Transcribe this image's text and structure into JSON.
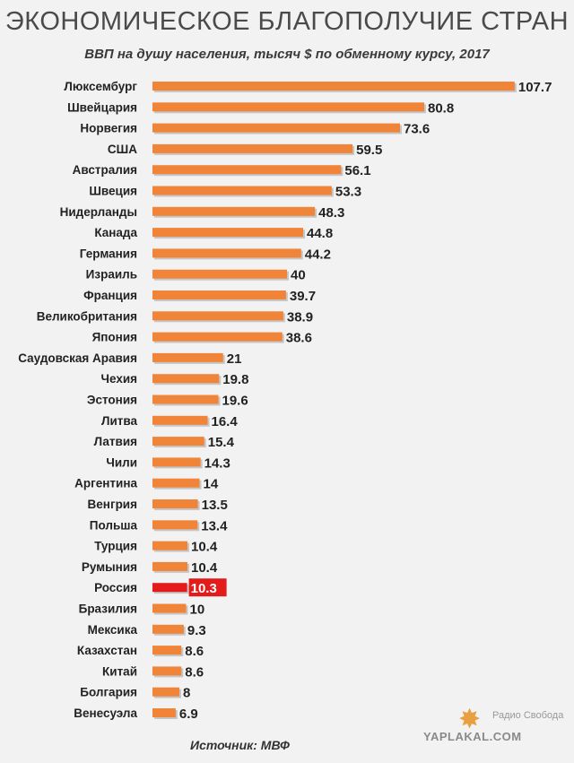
{
  "header": {
    "title": "ЭКОНОМИЧЕСКОЕ БЛАГОПОЛУЧИЕ СТРАН",
    "subtitle": "ВВП на душу населения, тысяч $ по обменному курсу, 2017"
  },
  "footer": {
    "source": "Источник: МВФ",
    "logo_text": "Радио Свобода",
    "watermark": "YAPLAKAL.COM"
  },
  "colors": {
    "bar": "#f0853a",
    "bar_highlight": "#e41b1b",
    "label_highlight_bg": "#e41b1b",
    "text": "#222222"
  },
  "chart_data": {
    "type": "bar",
    "orientation": "horizontal",
    "title": "ЭКОНОМИЧЕСКОЕ БЛАГОПОЛУЧИЕ СТРАН",
    "subtitle": "ВВП на душу населения, тысяч $ по обменному курсу, 2017",
    "xlabel": "",
    "ylabel": "",
    "highlight": "Россия",
    "categories": [
      "Люксембург",
      "Швейцария",
      "Норвегия",
      "США",
      "Австралия",
      "Швеция",
      "Нидерланды",
      "Канада",
      "Германия",
      "Израиль",
      "Франция",
      "Великобритания",
      "Япония",
      "Саудовская Аравия",
      "Чехия",
      "Эстония",
      "Литва",
      "Латвия",
      "Чили",
      "Аргентина",
      "Венгрия",
      "Польша",
      "Турция",
      "Румыния",
      "Россия",
      "Бразилия",
      "Мексика",
      "Казахстан",
      "Китай",
      "Болгария",
      "Венесуэла"
    ],
    "values": [
      107.7,
      80.8,
      73.6,
      59.5,
      56.1,
      53.3,
      48.3,
      44.8,
      44.2,
      40,
      39.7,
      38.9,
      38.6,
      21,
      19.8,
      19.6,
      16.4,
      15.4,
      14.3,
      14,
      13.5,
      13.4,
      10.4,
      10.4,
      10.3,
      10,
      9.3,
      8.6,
      8.6,
      8,
      6.9
    ],
    "labels": [
      "107.7",
      "80.8",
      "73.6",
      "59.5",
      "56.1",
      "53.3",
      "48.3",
      "44.8",
      "44.2",
      "40",
      "39.7",
      "38.9",
      "38.6",
      "21",
      "19.8",
      "19.6",
      "16.4",
      "15.4",
      "14.3",
      "14",
      "13.5",
      "13.4",
      "10.4",
      "10.4",
      "10.3",
      "10",
      "9.3",
      "8.6",
      "8.6",
      "8",
      "6.9"
    ],
    "grid": false,
    "legend": "none"
  }
}
